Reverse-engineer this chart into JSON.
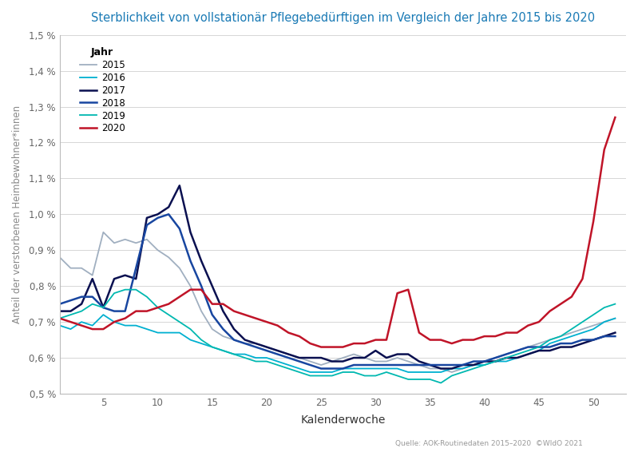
{
  "title": "Sterblichkeit von vollstationär Pflegebedürftigen im Vergleich der Jahre 2015 bis 2020",
  "xlabel": "Kalenderwoche",
  "ylabel": "Anteil der verstorbenen Heimbewohner*innen",
  "source": "Quelle: AOK-Routinedaten 2015–2020  ©WIdO 2021",
  "ylim": [
    0.005,
    0.015
  ],
  "yticks": [
    0.005,
    0.006,
    0.007,
    0.008,
    0.009,
    0.01,
    0.011,
    0.012,
    0.013,
    0.014,
    0.015
  ],
  "ytick_labels": [
    "0,5 %",
    "0,6 %",
    "0,7 %",
    "0,8 %",
    "0,9 %",
    "1,0 %",
    "1,1 %",
    "1,2 %",
    "1,3 %",
    "1,4 %",
    "1,5 %"
  ],
  "xticks": [
    5,
    10,
    15,
    20,
    25,
    30,
    35,
    40,
    45,
    50
  ],
  "title_color": "#1a7ab5",
  "legend_title": "Jahr",
  "years": [
    "2015",
    "2016",
    "2017",
    "2018",
    "2019",
    "2020"
  ],
  "colors": [
    "#a0afc0",
    "#00b0d0",
    "#0a1050",
    "#1846a0",
    "#00b8b0",
    "#c01428"
  ],
  "linewidths": [
    1.3,
    1.3,
    1.8,
    1.8,
    1.3,
    1.8
  ],
  "data": {
    "2015": [
      0.0088,
      0.0085,
      0.0085,
      0.0083,
      0.0095,
      0.0092,
      0.0093,
      0.0092,
      0.0093,
      0.009,
      0.0088,
      0.0085,
      0.008,
      0.0073,
      0.0068,
      0.0066,
      0.0065,
      0.0064,
      0.0064,
      0.0063,
      0.0062,
      0.0061,
      0.006,
      0.0059,
      0.0058,
      0.0059,
      0.006,
      0.0061,
      0.006,
      0.0059,
      0.0059,
      0.006,
      0.0059,
      0.0058,
      0.0057,
      0.0057,
      0.0056,
      0.0057,
      0.0058,
      0.0059,
      0.006,
      0.0061,
      0.0062,
      0.0063,
      0.0064,
      0.0065,
      0.0066,
      0.0067,
      0.0068,
      0.0069,
      0.007,
      0.0071
    ],
    "2016": [
      0.0069,
      0.0068,
      0.007,
      0.0069,
      0.0072,
      0.007,
      0.0069,
      0.0069,
      0.0068,
      0.0067,
      0.0067,
      0.0067,
      0.0065,
      0.0064,
      0.0063,
      0.0062,
      0.0061,
      0.0061,
      0.006,
      0.006,
      0.0059,
      0.0058,
      0.0057,
      0.0056,
      0.0056,
      0.0056,
      0.0057,
      0.0057,
      0.0057,
      0.0057,
      0.0057,
      0.0057,
      0.0056,
      0.0056,
      0.0056,
      0.0056,
      0.0057,
      0.0057,
      0.0058,
      0.0058,
      0.0059,
      0.0059,
      0.006,
      0.0061,
      0.0062,
      0.0064,
      0.0065,
      0.0066,
      0.0067,
      0.0068,
      0.007,
      0.0071
    ],
    "2017": [
      0.0073,
      0.0073,
      0.0075,
      0.0082,
      0.0074,
      0.0082,
      0.0083,
      0.0082,
      0.0099,
      0.01,
      0.0102,
      0.0108,
      0.0095,
      0.0087,
      0.008,
      0.0073,
      0.0068,
      0.0065,
      0.0064,
      0.0063,
      0.0062,
      0.0061,
      0.006,
      0.006,
      0.006,
      0.0059,
      0.0059,
      0.006,
      0.006,
      0.0062,
      0.006,
      0.0061,
      0.0061,
      0.0059,
      0.0058,
      0.0057,
      0.0057,
      0.0058,
      0.0058,
      0.0059,
      0.0059,
      0.006,
      0.006,
      0.0061,
      0.0062,
      0.0062,
      0.0063,
      0.0063,
      0.0064,
      0.0065,
      0.0066,
      0.0067
    ],
    "2018": [
      0.0075,
      0.0076,
      0.0077,
      0.0077,
      0.0074,
      0.0073,
      0.0073,
      0.0085,
      0.0097,
      0.0099,
      0.01,
      0.0096,
      0.0087,
      0.008,
      0.0072,
      0.0068,
      0.0065,
      0.0064,
      0.0063,
      0.0062,
      0.0061,
      0.006,
      0.0059,
      0.0058,
      0.0057,
      0.0057,
      0.0057,
      0.0058,
      0.0058,
      0.0058,
      0.0058,
      0.0058,
      0.0058,
      0.0058,
      0.0058,
      0.0058,
      0.0058,
      0.0058,
      0.0059,
      0.0059,
      0.006,
      0.0061,
      0.0062,
      0.0063,
      0.0063,
      0.0063,
      0.0064,
      0.0064,
      0.0065,
      0.0065,
      0.0066,
      0.0066
    ],
    "2019": [
      0.0071,
      0.0072,
      0.0073,
      0.0075,
      0.0074,
      0.0078,
      0.0079,
      0.0079,
      0.0077,
      0.0074,
      0.0072,
      0.007,
      0.0068,
      0.0065,
      0.0063,
      0.0062,
      0.0061,
      0.006,
      0.0059,
      0.0059,
      0.0058,
      0.0057,
      0.0056,
      0.0055,
      0.0055,
      0.0055,
      0.0056,
      0.0056,
      0.0055,
      0.0055,
      0.0056,
      0.0055,
      0.0054,
      0.0054,
      0.0054,
      0.0053,
      0.0055,
      0.0056,
      0.0057,
      0.0058,
      0.0059,
      0.006,
      0.0061,
      0.0062,
      0.0063,
      0.0065,
      0.0066,
      0.0068,
      0.007,
      0.0072,
      0.0074,
      0.0075
    ],
    "2020": [
      0.0071,
      0.007,
      0.0069,
      0.0068,
      0.0068,
      0.007,
      0.0071,
      0.0073,
      0.0073,
      0.0074,
      0.0075,
      0.0077,
      0.0079,
      0.0079,
      0.0075,
      0.0075,
      0.0073,
      0.0072,
      0.0071,
      0.007,
      0.0069,
      0.0067,
      0.0066,
      0.0064,
      0.0063,
      0.0063,
      0.0063,
      0.0064,
      0.0064,
      0.0065,
      0.0065,
      0.0078,
      0.0079,
      0.0067,
      0.0065,
      0.0065,
      0.0064,
      0.0065,
      0.0065,
      0.0066,
      0.0066,
      0.0067,
      0.0067,
      0.0069,
      0.007,
      0.0073,
      0.0075,
      0.0077,
      0.0082,
      0.0098,
      0.0118,
      0.0127
    ]
  }
}
